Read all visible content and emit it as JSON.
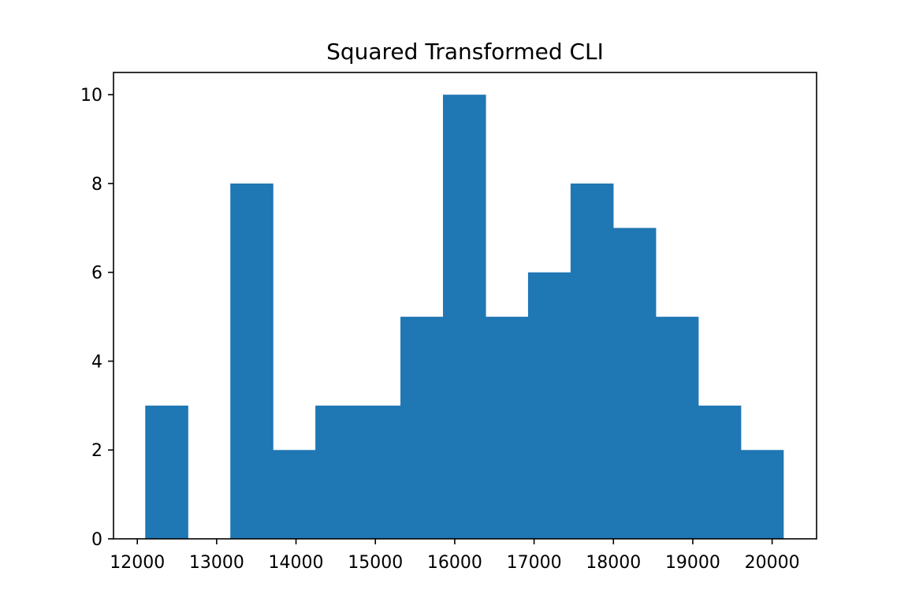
{
  "chart_data": {
    "type": "bar",
    "title": "Squared Transformed CLI",
    "xlabel": "",
    "ylabel": "",
    "bin_edges": [
      12100,
      12636,
      13172,
      13708,
      14244,
      14780,
      15316,
      15852,
      16388,
      16924,
      17460,
      17996,
      18532,
      19068,
      19604,
      20140
    ],
    "values": [
      3,
      0,
      8,
      2,
      3,
      3,
      5,
      10,
      5,
      6,
      8,
      7,
      5,
      3,
      2
    ],
    "xlim": [
      11700,
      20560
    ],
    "ylim": [
      0,
      10.5
    ],
    "xticks": [
      12000,
      13000,
      14000,
      15000,
      16000,
      17000,
      18000,
      19000,
      20000
    ],
    "xtick_labels": [
      "12000",
      "13000",
      "14000",
      "15000",
      "16000",
      "17000",
      "18000",
      "19000",
      "20000"
    ],
    "yticks": [
      0,
      2,
      4,
      6,
      8,
      10
    ],
    "ytick_labels": [
      "0",
      "2",
      "4",
      "6",
      "8",
      "10"
    ],
    "bar_color": "#1f77b4",
    "grid": false,
    "legend": "none"
  }
}
